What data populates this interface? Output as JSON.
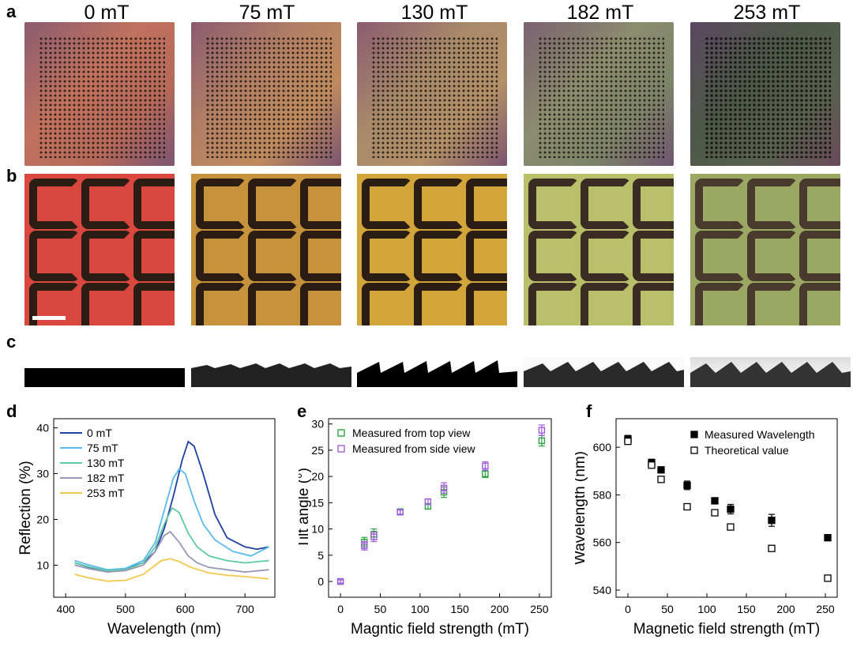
{
  "panel_labels": {
    "a": "a",
    "b": "b",
    "c": "c",
    "d": "d",
    "e": "e",
    "f": "f"
  },
  "field_labels": [
    "0 mT",
    "75 mT",
    "130 mT",
    "182 mT",
    "253 mT"
  ],
  "colors": {
    "top": [
      "#c0725e",
      "#b48064",
      "#a88a6a",
      "#8a8d6e",
      "#6b7560"
    ],
    "mid": [
      "#d9473e",
      "#c7923c",
      "#d1a53a",
      "#b8c06a",
      "#9aa863"
    ]
  },
  "chart_data": [
    {
      "id": "d",
      "type": "line",
      "xlabel": "Wavelength (nm)",
      "ylabel": "Reflection (%)",
      "xlim": [
        380,
        750
      ],
      "ylim": [
        3,
        42
      ],
      "xticks": [
        400,
        500,
        600,
        700
      ],
      "yticks": [
        10,
        20,
        30,
        40
      ],
      "series": [
        {
          "name": "0 mT",
          "color": "#1f3fa3",
          "x": [
            415,
            440,
            470,
            500,
            530,
            550,
            565,
            580,
            595,
            605,
            615,
            630,
            650,
            670,
            700,
            720,
            740
          ],
          "y": [
            10.5,
            9.5,
            8.8,
            9.2,
            10.5,
            13,
            18,
            25,
            33,
            37,
            36,
            30,
            21,
            16,
            14,
            13.5,
            14
          ]
        },
        {
          "name": "75 mT",
          "color": "#5ab9ee",
          "x": [
            415,
            440,
            470,
            500,
            530,
            550,
            565,
            580,
            590,
            600,
            615,
            630,
            650,
            680,
            710,
            740
          ],
          "y": [
            11,
            10,
            9,
            9.3,
            11,
            15,
            22,
            29,
            31,
            30,
            24,
            19,
            15.5,
            13,
            12,
            14
          ]
        },
        {
          "name": "130 mT",
          "color": "#5ec9a5",
          "x": [
            415,
            440,
            470,
            500,
            530,
            550,
            565,
            578,
            590,
            605,
            620,
            640,
            670,
            700,
            740
          ],
          "y": [
            10.5,
            9.6,
            8.8,
            9,
            10.5,
            14,
            19,
            22.5,
            21.5,
            17,
            14,
            12,
            11,
            10.5,
            11
          ]
        },
        {
          "name": "182 mT",
          "color": "#9797b7",
          "x": [
            415,
            440,
            470,
            500,
            530,
            550,
            565,
            575,
            590,
            605,
            620,
            640,
            670,
            700,
            740
          ],
          "y": [
            10,
            9.2,
            8.5,
            8.8,
            10,
            13,
            16.5,
            17.3,
            15,
            12,
            10.5,
            9.5,
            9,
            8.5,
            9
          ]
        },
        {
          "name": "253 mT",
          "color": "#f2c94c",
          "x": [
            415,
            440,
            470,
            500,
            530,
            550,
            560,
            575,
            590,
            610,
            640,
            670,
            700,
            740
          ],
          "y": [
            8,
            7.2,
            6.5,
            6.7,
            8,
            10,
            11,
            11.4,
            10.8,
            9.5,
            8.3,
            7.8,
            7.5,
            7
          ]
        }
      ]
    },
    {
      "id": "e",
      "type": "scatter",
      "xlabel": "Magntic field strength (mT)",
      "ylabel": "Tilt angle (°)",
      "xlim": [
        -15,
        265
      ],
      "ylim": [
        -3,
        31
      ],
      "xticks": [
        0,
        50,
        100,
        150,
        200,
        250
      ],
      "yticks": [
        0,
        5,
        10,
        15,
        20,
        25,
        30
      ],
      "series": [
        {
          "name": "Measured from top view",
          "color": "#2ea043",
          "x": [
            0,
            30,
            42,
            75,
            110,
            130,
            182,
            253
          ],
          "y": [
            0,
            7.5,
            9,
            13.3,
            14.3,
            17,
            20.5,
            26.8
          ],
          "err": [
            0.3,
            0.9,
            1.0,
            0.5,
            0.5,
            1.0,
            0.7,
            1.0
          ]
        },
        {
          "name": "Measured from side view",
          "color": "#a05ce0",
          "x": [
            0,
            30,
            42,
            75,
            110,
            130,
            182,
            253
          ],
          "y": [
            0,
            6.8,
            8.5,
            13.2,
            15.2,
            17.8,
            22,
            28.8
          ],
          "err": [
            0.3,
            0.8,
            0.9,
            0.4,
            0.5,
            1.0,
            0.8,
            1.0
          ]
        }
      ]
    },
    {
      "id": "f",
      "type": "scatter",
      "xlabel": "Magnetic field strength (mT)",
      "ylabel": "Wavelength (nm)",
      "xlim": [
        -15,
        265
      ],
      "ylim": [
        537,
        612
      ],
      "xticks": [
        0,
        50,
        100,
        150,
        200,
        250
      ],
      "yticks": [
        540,
        560,
        580,
        600
      ],
      "series": [
        {
          "name": "Measured Wavelength",
          "filled": true,
          "color": "#000000",
          "x": [
            0,
            30,
            42,
            75,
            110,
            130,
            182,
            253
          ],
          "y": [
            603.5,
            593.5,
            590.5,
            584,
            577.5,
            574,
            569.3,
            562
          ],
          "err": [
            1.5,
            1.5,
            1.0,
            1.8,
            1.3,
            2.0,
            2.5,
            1.0
          ]
        },
        {
          "name": "Theoretical value",
          "filled": false,
          "color": "#000000",
          "x": [
            0,
            30,
            42,
            75,
            110,
            130,
            182,
            253
          ],
          "y": [
            602.5,
            592.5,
            586.5,
            575,
            572.5,
            566.5,
            557.5,
            545
          ],
          "err": []
        }
      ]
    }
  ]
}
